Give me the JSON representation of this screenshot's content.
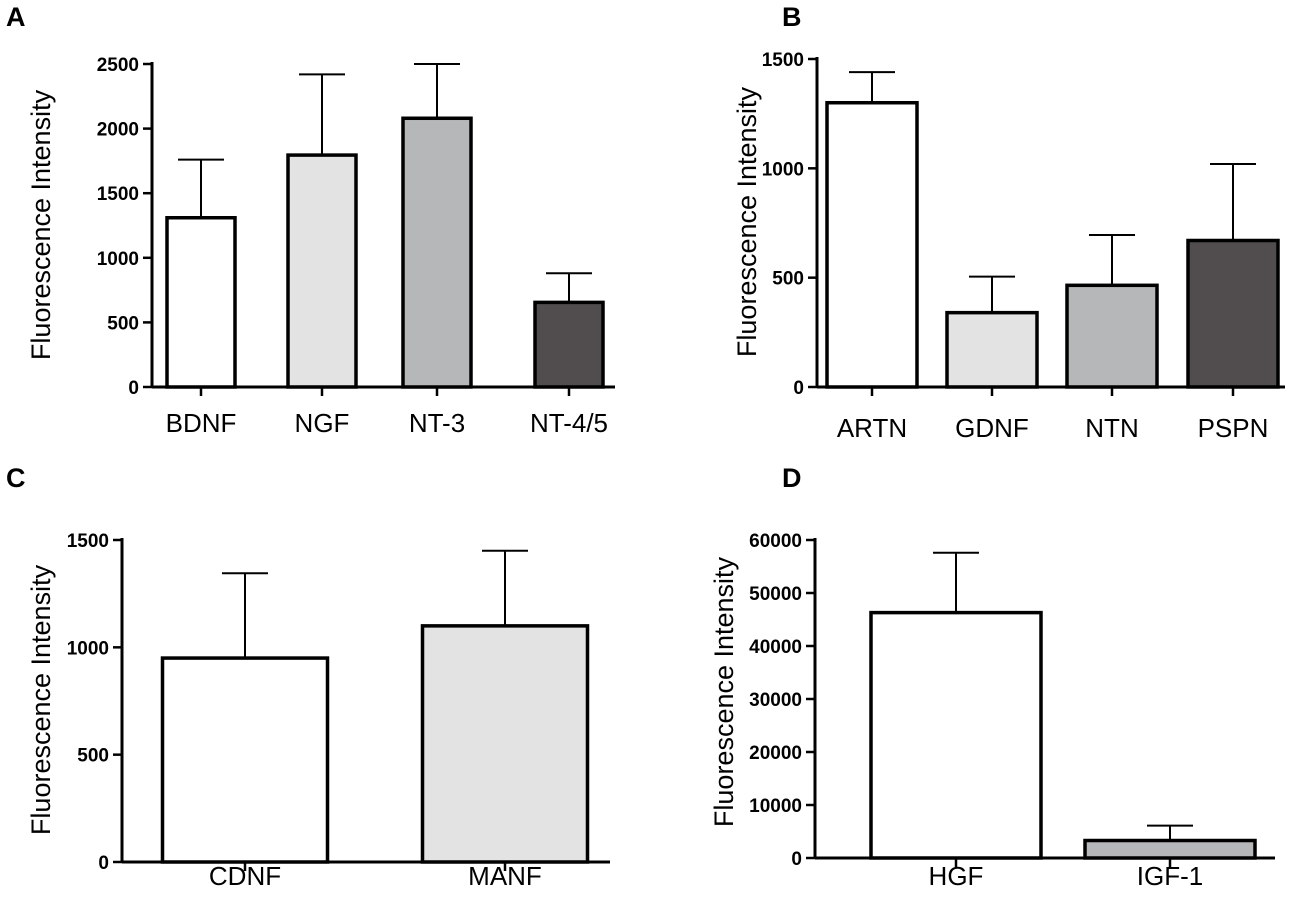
{
  "chart_data": [
    {
      "panel": "A",
      "type": "bar",
      "ylabel": "Fluorescence Intensity",
      "ylim": [
        0,
        2500
      ],
      "yticks": [
        0,
        500,
        1000,
        1500,
        2000,
        2500
      ],
      "categories": [
        "BDNF",
        "NGF",
        "NT-3",
        "NT-4/5"
      ],
      "values": [
        1310,
        1795,
        2080,
        655
      ],
      "errors": [
        450,
        625,
        420,
        225
      ],
      "colors": [
        "#ffffff",
        "#e3e3e3",
        "#b5b7b9",
        "#514c4d"
      ]
    },
    {
      "panel": "B",
      "type": "bar",
      "ylabel": "Fluorescence Intensity",
      "ylim": [
        0,
        1500
      ],
      "yticks": [
        0,
        500,
        1000,
        1500
      ],
      "categories": [
        "ARTN",
        "GDNF",
        "NTN",
        "PSPN"
      ],
      "values": [
        1300,
        340,
        465,
        670
      ],
      "errors": [
        140,
        165,
        230,
        350
      ],
      "colors": [
        "#ffffff",
        "#e3e3e3",
        "#b5b7b9",
        "#514c4d"
      ]
    },
    {
      "panel": "C",
      "type": "bar",
      "ylabel": "Fluorescence Intensity",
      "ylim": [
        0,
        1500
      ],
      "yticks": [
        0,
        500,
        1000,
        1500
      ],
      "categories": [
        "CDNF",
        "MANF"
      ],
      "values": [
        950,
        1100
      ],
      "errors": [
        395,
        350
      ],
      "colors": [
        "#ffffff",
        "#e3e3e3"
      ]
    },
    {
      "panel": "D",
      "type": "bar",
      "ylabel": "Fluorescence Intensity",
      "ylim": [
        0,
        60000
      ],
      "yticks": [
        0,
        10000,
        20000,
        30000,
        40000,
        50000,
        60000
      ],
      "categories": [
        "HGF",
        "IGF-1"
      ],
      "values": [
        46300,
        3300
      ],
      "errors": [
        11300,
        2800
      ],
      "colors": [
        "#ffffff",
        "#b5b7b9"
      ]
    }
  ]
}
